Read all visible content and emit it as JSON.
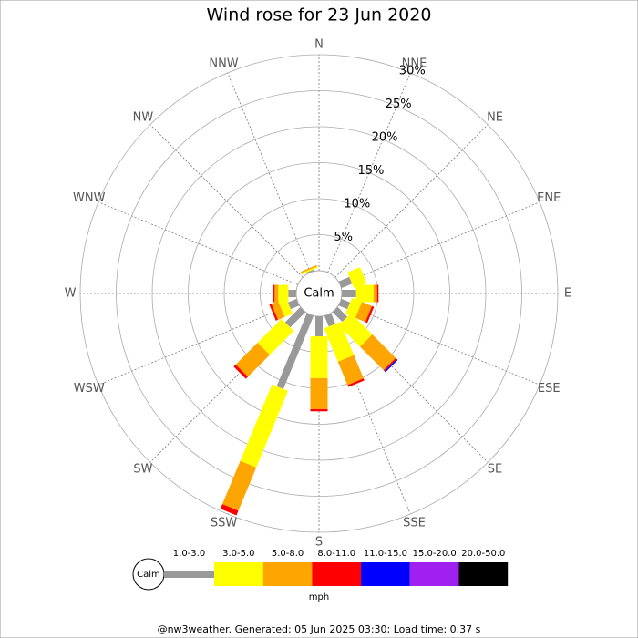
{
  "chart_data": {
    "type": "windrose",
    "title": "Wind rose for 23 Jun 2020",
    "categories": [
      "N",
      "NNE",
      "NE",
      "ENE",
      "E",
      "ESE",
      "SE",
      "SSE",
      "S",
      "SSW",
      "SW",
      "WSW",
      "W",
      "WNW",
      "NW",
      "NNW"
    ],
    "series": [
      {
        "name": "1.0-3.0",
        "color": "#999999",
        "values": [
          0,
          0,
          0,
          1.6,
          2,
          1.3,
          1.9,
          1.6,
          2.8,
          11,
          3,
          1.3,
          1.1,
          0,
          0,
          0.2
        ]
      },
      {
        "name": "3.0-5.0",
        "color": "#ffff00",
        "values": [
          0,
          0,
          0,
          1.9,
          2.4,
          1.5,
          4.2,
          5,
          5.8,
          11.5,
          4.7,
          1.2,
          1.4,
          0,
          0,
          0.2
        ]
      },
      {
        "name": "5.0-8.0",
        "color": "#ffa500",
        "values": [
          0,
          0,
          0,
          0,
          0.5,
          1.5,
          4.6,
          3.5,
          4.3,
          6.5,
          4.3,
          1,
          0.5,
          0,
          0,
          0.2
        ]
      },
      {
        "name": "8.0-11.0",
        "color": "#ff0000",
        "values": [
          0,
          0,
          0,
          0,
          0.2,
          0.3,
          0.2,
          0.3,
          0.3,
          0.7,
          0.4,
          0.3,
          0.2,
          0,
          0,
          0
        ]
      },
      {
        "name": "11.0-15.0",
        "color": "#0000ff",
        "values": [
          0,
          0,
          0,
          0,
          0,
          0,
          0.2,
          0,
          0,
          0,
          0,
          0,
          0,
          0,
          0,
          0
        ]
      },
      {
        "name": "15.0-20.0",
        "color": "#a020f0",
        "values": [
          0,
          0,
          0,
          0,
          0,
          0,
          0,
          0,
          0,
          0,
          0,
          0,
          0,
          0,
          0,
          0
        ]
      },
      {
        "name": "20.0-50.0",
        "color": "#000000",
        "values": [
          0,
          0,
          0,
          0,
          0,
          0,
          0,
          0,
          0,
          0,
          0,
          0,
          0,
          0,
          0,
          0
        ]
      }
    ],
    "rlim": [
      0,
      30
    ],
    "rticks": [
      {
        "value": 5,
        "label": "5%"
      },
      {
        "value": 10,
        "label": "10%"
      },
      {
        "value": 15,
        "label": "15%"
      },
      {
        "value": 20,
        "label": "20%"
      },
      {
        "value": 25,
        "label": "25%"
      },
      {
        "value": 30,
        "label": "30%"
      }
    ],
    "calm_label": "Calm",
    "legend_unit": "mph",
    "footer": "@nw3weather. Generated: 05 Jun 2025 03:30; Load time: 0.37 s"
  }
}
